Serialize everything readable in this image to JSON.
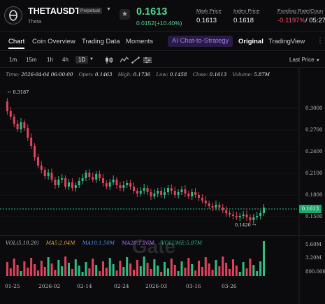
{
  "header": {
    "pair": "THETAUSDT",
    "contract_type": "Perpetual",
    "subtitle": "Theta",
    "last_price": "0.1613",
    "change": "0.0152(+10.40%)",
    "mark_label": "Mark Price",
    "mark_value": "0.1613",
    "index_label": "Index Price",
    "index_value": "0.1618",
    "funding_label": "Funding Rate/Coun",
    "funding_value": "-0.1197%",
    "funding_countdown": "/ 05:27",
    "price_color": "#4ed89b"
  },
  "tabs": [
    {
      "label": "Chart",
      "active": true
    },
    {
      "label": "Coin Overview"
    },
    {
      "label": "Trading Data"
    },
    {
      "label": "Moments"
    },
    {
      "label": "AI Chat-to-Strategy"
    },
    {
      "label": "Original",
      "active": true
    },
    {
      "label": "TradingView"
    }
  ],
  "toolbar": {
    "timeframes": [
      "1m",
      "15m",
      "1h",
      "4h",
      "1D"
    ],
    "active_timeframe": "1D",
    "price_mode": "Last Price",
    "icons": [
      "candlestick-icon",
      "indicator-icon",
      "drawing-icon",
      "settings-icon"
    ]
  },
  "ohlc": {
    "time_label": "Time:",
    "time": "2026-04-04 06:00:00",
    "open_label": "Open:",
    "open": "0.1463",
    "high_label": "High:",
    "high": "0.1736",
    "low_label": "Low:",
    "low": "0.1458",
    "close_label": "Close:",
    "close": "0.1613",
    "volume_label": "Volume:",
    "volume": "5.87M"
  },
  "chart": {
    "y_labels": [
      "0.3000",
      "0.2700",
      "0.2400",
      "0.2100",
      "0.1800",
      "0.1500"
    ],
    "current_price": "0.1613",
    "high_marker": "0.3187",
    "low_marker": "0.1420",
    "x_labels": [
      "01-25",
      "2026-02",
      "02-14",
      "02-24",
      "2026-03",
      "03-16",
      "03-26"
    ],
    "watermark": "Gate",
    "up_color": "#2ebd85",
    "down_color": "#e2415c"
  },
  "volume": {
    "label": "VOL(5,10,20)",
    "ma5_label": "MA5:",
    "ma5": "2.04M",
    "ma10_label": "MA10:",
    "ma10": "1.50M",
    "ma20_label": "MA20:",
    "ma20": "1.26M",
    "vol_label": "VOLUME:",
    "vol": "5.87M",
    "y_labels": [
      "5.60M",
      "3.20M",
      "800.00K"
    ]
  }
}
